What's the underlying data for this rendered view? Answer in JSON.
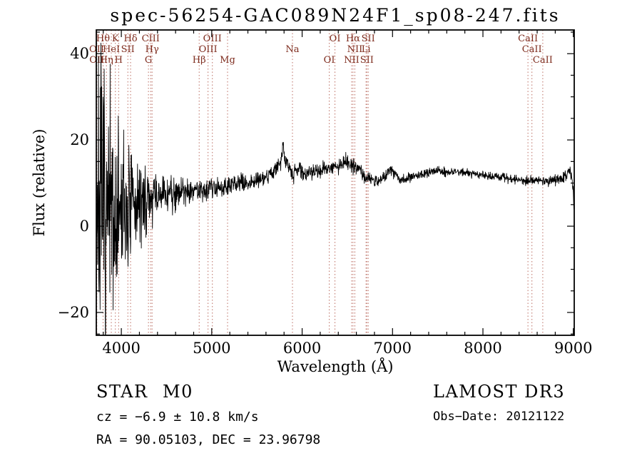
{
  "title": "spec-56254-GAC089N24F1_sp08-247.fits",
  "chart_data": {
    "type": "line",
    "title": "spec-56254-GAC089N24F1_sp08-247.fits",
    "xlabel": "Wavelength (Å)",
    "ylabel": "Flux (relative)",
    "xlim": [
      3723,
      9010
    ],
    "ylim": [
      -25.3,
      45.5
    ],
    "xticks": [
      4000,
      5000,
      6000,
      7000,
      8000,
      9000
    ],
    "x_minor_step": 200,
    "yticks": [
      -20,
      0,
      20,
      40
    ],
    "y_minor_step": 5,
    "grid": false,
    "legend": "none",
    "series_color": "#000000",
    "line_marker_color": "#bc6e63",
    "line_label_color": "#7e2c1e",
    "noise_seed": 7,
    "sample_step": 3,
    "continuum_anchors": [
      [
        3723,
        8
      ],
      [
        3760,
        4
      ],
      [
        3800,
        2
      ],
      [
        3850,
        0
      ],
      [
        3900,
        1
      ],
      [
        3950,
        2
      ],
      [
        4000,
        3
      ],
      [
        4060,
        3.5
      ],
      [
        4120,
        4.2
      ],
      [
        4180,
        5.2
      ],
      [
        4240,
        5.6
      ],
      [
        4300,
        6
      ],
      [
        4360,
        6.6
      ],
      [
        4430,
        7
      ],
      [
        4500,
        7.5
      ],
      [
        4600,
        8
      ],
      [
        4700,
        8.2
      ],
      [
        4800,
        8.5
      ],
      [
        4861,
        8.2
      ],
      [
        4920,
        8.8
      ],
      [
        5000,
        9
      ],
      [
        5100,
        9.3
      ],
      [
        5175,
        9.1
      ],
      [
        5260,
        9.8
      ],
      [
        5360,
        10
      ],
      [
        5460,
        10.5
      ],
      [
        5560,
        11.1
      ],
      [
        5660,
        12.3
      ],
      [
        5720,
        13.4
      ],
      [
        5762,
        14.6
      ],
      [
        5786,
        18.6
      ],
      [
        5812,
        15.2
      ],
      [
        5850,
        14.1
      ],
      [
        5878,
        13.1
      ],
      [
        5893,
        11.8
      ],
      [
        5916,
        13
      ],
      [
        5980,
        13
      ],
      [
        6050,
        12
      ],
      [
        6120,
        12.8
      ],
      [
        6200,
        13
      ],
      [
        6300,
        13.3
      ],
      [
        6400,
        14
      ],
      [
        6480,
        15
      ],
      [
        6540,
        14.6
      ],
      [
        6563,
        14.1
      ],
      [
        6620,
        13.4
      ],
      [
        6700,
        11.6
      ],
      [
        6760,
        10.8
      ],
      [
        6850,
        10.5
      ],
      [
        6920,
        11.6
      ],
      [
        6960,
        13.1
      ],
      [
        7010,
        12.6
      ],
      [
        7080,
        10.9
      ],
      [
        7150,
        11
      ],
      [
        7220,
        11.6
      ],
      [
        7300,
        12
      ],
      [
        7400,
        12.4
      ],
      [
        7500,
        13
      ],
      [
        7560,
        12.7
      ],
      [
        7600,
        12.2
      ],
      [
        7650,
        12.6
      ],
      [
        7720,
        12.6
      ],
      [
        7800,
        12.4
      ],
      [
        7900,
        12.1
      ],
      [
        8000,
        12
      ],
      [
        8100,
        11.6
      ],
      [
        8200,
        11.5
      ],
      [
        8300,
        11
      ],
      [
        8400,
        10.7
      ],
      [
        8500,
        10.6
      ],
      [
        8600,
        10.6
      ],
      [
        8700,
        10.4
      ],
      [
        8800,
        10.6
      ],
      [
        8870,
        11
      ],
      [
        8920,
        11.6
      ],
      [
        8955,
        13
      ],
      [
        8975,
        12.4
      ],
      [
        8990,
        9
      ],
      [
        9008,
        4.5
      ]
    ],
    "noise_sigma_anchors": [
      [
        3723,
        16
      ],
      [
        3780,
        17
      ],
      [
        3850,
        15
      ],
      [
        3920,
        13
      ],
      [
        3980,
        11
      ],
      [
        4050,
        8
      ],
      [
        4150,
        5.5
      ],
      [
        4250,
        4
      ],
      [
        4350,
        3
      ],
      [
        4500,
        2.3
      ],
      [
        4700,
        1.7
      ],
      [
        4900,
        1.4
      ],
      [
        5100,
        1.2
      ],
      [
        5400,
        1.0
      ],
      [
        5700,
        1.1
      ],
      [
        5900,
        0.9
      ],
      [
        6200,
        0.85
      ],
      [
        6563,
        0.8
      ],
      [
        6800,
        0.7
      ],
      [
        7200,
        0.55
      ],
      [
        7600,
        0.5
      ],
      [
        8000,
        0.5
      ],
      [
        8400,
        0.5
      ],
      [
        8700,
        0.55
      ],
      [
        9008,
        0.8
      ]
    ],
    "spectral_lines": [
      {
        "label": "Hθ",
        "wavelength": 3798,
        "row": 0
      },
      {
        "label": "K",
        "wavelength": 3934,
        "row": 0
      },
      {
        "label": "Hδ",
        "wavelength": 4102,
        "row": 0
      },
      {
        "label": "CIII",
        "wavelength": 4325,
        "row": 0
      },
      {
        "label": "OIII",
        "wavelength": 5007,
        "row": 0
      },
      {
        "label": "OI",
        "wavelength": 6363,
        "row": 0
      },
      {
        "label": "Hα",
        "wavelength": 6563,
        "row": 0
      },
      {
        "label": "SII",
        "wavelength": 6731,
        "row": 0
      },
      {
        "label": "CaII",
        "wavelength": 8498,
        "row": 0
      },
      {
        "label": "OII",
        "wavelength": 3727,
        "row": 1
      },
      {
        "label": "HeI",
        "wavelength": 3889,
        "row": 1
      },
      {
        "label": "SII",
        "wavelength": 4072,
        "row": 1
      },
      {
        "label": "Hγ",
        "wavelength": 4340,
        "row": 1
      },
      {
        "label": "OIII",
        "wavelength": 4959,
        "row": 1
      },
      {
        "label": "Na",
        "wavelength": 5893,
        "row": 1
      },
      {
        "label": "NII",
        "wavelength": 6583,
        "row": 1
      },
      {
        "label": "Li",
        "wavelength": 6707,
        "row": 1
      },
      {
        "label": "CaII",
        "wavelength": 8542,
        "row": 1
      },
      {
        "label": "OII",
        "wavelength": 3729,
        "row": 2
      },
      {
        "label": "Hη",
        "wavelength": 3835,
        "row": 2
      },
      {
        "label": "H",
        "wavelength": 3970,
        "row": 2
      },
      {
        "label": "G",
        "wavelength": 4300,
        "row": 2
      },
      {
        "label": "Hβ",
        "wavelength": 4861,
        "row": 2
      },
      {
        "label": "Mg",
        "wavelength": 5175,
        "row": 2
      },
      {
        "label": "OI",
        "wavelength": 6300,
        "row": 2
      },
      {
        "label": "NII",
        "wavelength": 6548,
        "row": 2
      },
      {
        "label": "SII",
        "wavelength": 6716,
        "row": 2
      },
      {
        "label": "CaII",
        "wavelength": 8662,
        "row": 2
      }
    ]
  },
  "footer": {
    "object_type": "STAR",
    "subclass": "M0",
    "survey": "LAMOST DR3",
    "cz": "cz = −6.9 ± 10.8 km/s",
    "obs_date": "Obs−Date: 20121122",
    "coords": "RA =  90.05103, DEC =  23.96798"
  }
}
